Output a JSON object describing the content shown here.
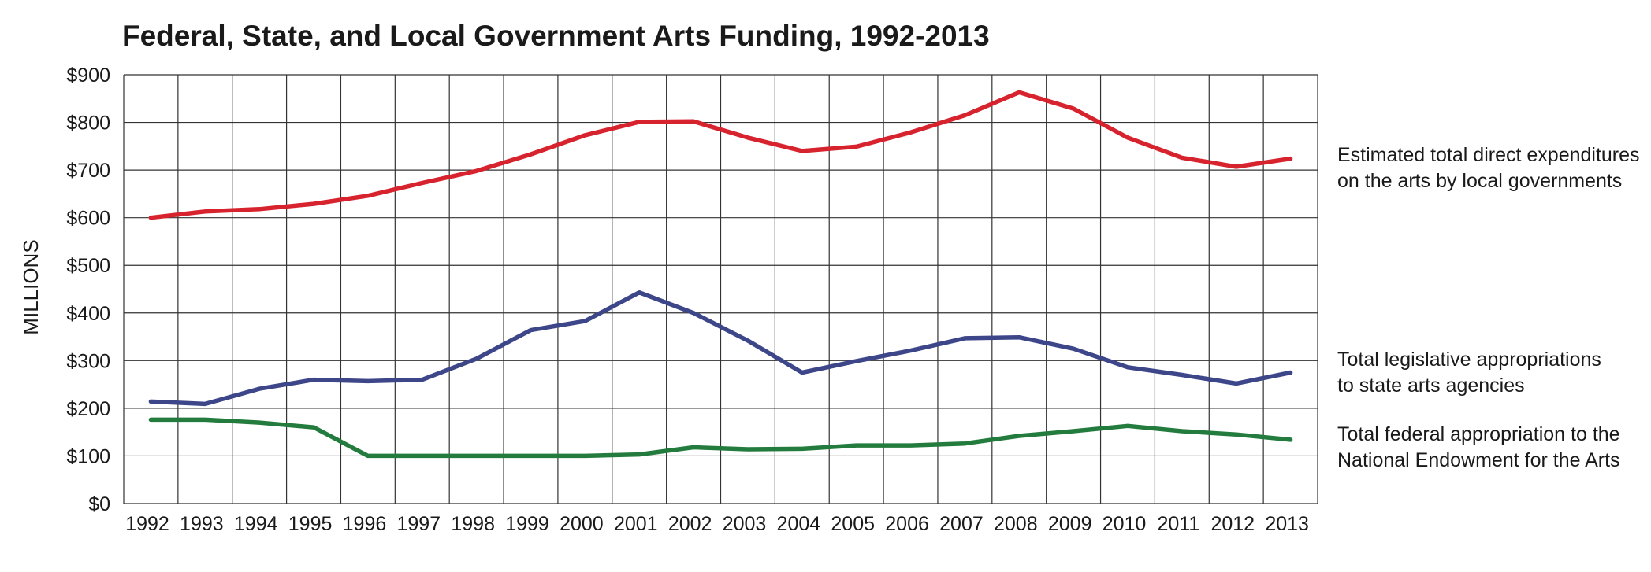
{
  "chart_data": {
    "type": "line",
    "title": "Federal, State, and Local Government Arts Funding, 1992-2013",
    "ylabel": "MILLIONS",
    "xlabel": "",
    "ylim": [
      0,
      900
    ],
    "yticks": [
      0,
      100,
      200,
      300,
      400,
      500,
      600,
      700,
      800,
      900
    ],
    "ytick_labels": [
      "$0",
      "$100",
      "$200",
      "$300",
      "$400",
      "$500",
      "$600",
      "$700",
      "$800",
      "$900"
    ],
    "categories": [
      "1992",
      "1993",
      "1994",
      "1995",
      "1996",
      "1997",
      "1998",
      "1999",
      "2000",
      "2001",
      "2002",
      "2003",
      "2004",
      "2005",
      "2006",
      "2007",
      "2008",
      "2009",
      "2010",
      "2011",
      "2012",
      "2013"
    ],
    "grid": true,
    "legend": "right",
    "series": [
      {
        "name": "Estimated total direct expenditures on the arts by local governments",
        "label_lines": [
          "Estimated total direct expenditures",
          "on the arts by local governments"
        ],
        "color": "#d7232e",
        "values": [
          600,
          613,
          618,
          629,
          646,
          673,
          698,
          733,
          773,
          801,
          802,
          768,
          740,
          749,
          779,
          815,
          863,
          829,
          768,
          726,
          707,
          724
        ]
      },
      {
        "name": "Total legislative appropriations to state arts agencies",
        "label_lines": [
          "Total legislative appropriations",
          "to state arts agencies"
        ],
        "color": "#3d4689",
        "values": [
          214,
          209,
          241,
          260,
          257,
          260,
          304,
          364,
          383,
          443,
          400,
          342,
          275,
          299,
          321,
          347,
          349,
          325,
          286,
          270,
          252,
          275
        ]
      },
      {
        "name": "Total federal appropriation to the National Endowment for the Arts",
        "label_lines": [
          "Total federal appropriation to the",
          "National Endowment for the Arts"
        ],
        "color": "#237c3d",
        "values": [
          176,
          176,
          170,
          160,
          100,
          100,
          100,
          100,
          100,
          103,
          118,
          114,
          115,
          122,
          122,
          126,
          142,
          152,
          163,
          152,
          145,
          134
        ]
      }
    ]
  }
}
